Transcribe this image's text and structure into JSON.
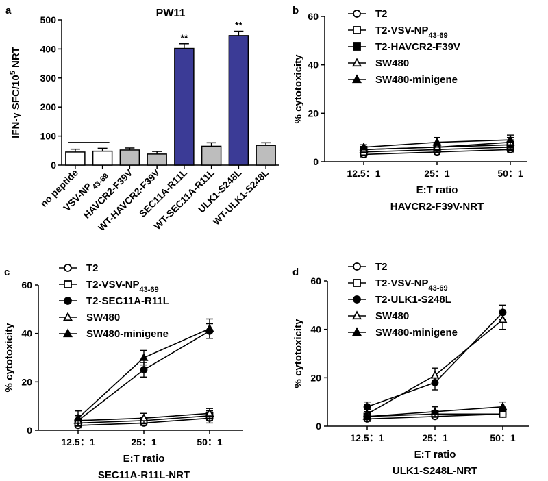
{
  "chart_data": [
    {
      "type": "bar",
      "panel": "a",
      "title": "PW11",
      "ylabel_prefix": "IFN-γ  SFC/10",
      "ylabel_sup": "5",
      "ylabel_suffix": " NRT",
      "ylim": [
        0,
        500
      ],
      "yticks": [
        0,
        100,
        200,
        300,
        400,
        500
      ],
      "categories": [
        "no peptide",
        "VSV-NP43-69",
        "HAVCR2-F39V",
        "WT-HAVCR2-F39V",
        "SEC11A-R11L",
        "WT-SEC11A-R11L",
        "ULK1-S248L",
        "WT-ULK1-S248L"
      ],
      "category_base": [
        "no peptide",
        "VSV-NP",
        "HAVCR2-F39V",
        "WT-HAVCR2-F39V",
        "SEC11A-R11L",
        "WT-SEC11A-R11L",
        "ULK1-S248L",
        "WT-ULK1-S248L"
      ],
      "category_sub": [
        "",
        "43-69",
        "",
        "",
        "",
        "",
        "",
        ""
      ],
      "values": [
        45,
        48,
        52,
        38,
        402,
        65,
        446,
        68
      ],
      "errors": [
        10,
        10,
        7,
        9,
        16,
        12,
        15,
        9
      ],
      "colors": [
        "#ffffff",
        "#ffffff",
        "#bdbdbd",
        "#bdbdbd",
        "#3b3b96",
        "#bdbdbd",
        "#3b3b96",
        "#bdbdbd"
      ],
      "annotations": [
        {
          "index": 4,
          "text": "**"
        },
        {
          "index": 6,
          "text": "**"
        }
      ],
      "bracket": {
        "from": 0,
        "to": 1,
        "value": 78
      }
    },
    {
      "type": "line",
      "panel": "b",
      "title": "HAVCR2-F39V-NRT",
      "xlabel": "E:T ratio",
      "ylabel": "% cytotoxicity",
      "categories": [
        "12.5：1",
        "25：1",
        "50：1"
      ],
      "ylim": [
        0,
        60
      ],
      "yticks": [
        0,
        20,
        40,
        60
      ],
      "series": [
        {
          "name": "T2",
          "name_sub": "",
          "marker": "circle-open",
          "values": [
            3,
            4,
            5
          ],
          "errors": [
            1,
            1,
            1
          ]
        },
        {
          "name": "T2-VSV-NP",
          "name_sub": "43-69",
          "marker": "square-open",
          "values": [
            4,
            5,
            6
          ],
          "errors": [
            1,
            1,
            1
          ]
        },
        {
          "name": "T2-HAVCR2-F39V",
          "name_sub": "",
          "marker": "square-filled",
          "values": [
            5,
            6,
            7
          ],
          "errors": [
            1,
            1,
            2
          ]
        },
        {
          "name": "SW480",
          "name_sub": "",
          "marker": "triangle-open",
          "values": [
            5,
            6,
            8
          ],
          "errors": [
            1,
            2,
            2
          ]
        },
        {
          "name": "SW480-minigene",
          "name_sub": "",
          "marker": "triangle-filled",
          "values": [
            6,
            8,
            9
          ],
          "errors": [
            1,
            2,
            2
          ]
        }
      ]
    },
    {
      "type": "line",
      "panel": "c",
      "title": "SEC11A-R11L-NRT",
      "xlabel": "E:T ratio",
      "ylabel": "% cytotoxicity",
      "categories": [
        "12.5：1",
        "25：1",
        "50：1"
      ],
      "ylim": [
        0,
        60
      ],
      "yticks": [
        0,
        20,
        40,
        60
      ],
      "series": [
        {
          "name": "T2",
          "name_sub": "",
          "marker": "circle-open",
          "values": [
            2,
            3,
            5
          ],
          "errors": [
            1,
            1,
            2
          ]
        },
        {
          "name": "T2-VSV-NP",
          "name_sub": "43-69",
          "marker": "square-open",
          "values": [
            3,
            4,
            6
          ],
          "errors": [
            1,
            1,
            2
          ]
        },
        {
          "name": "T2-SEC11A-R11L",
          "name_sub": "",
          "marker": "circle-filled",
          "values": [
            4,
            25,
            41
          ],
          "errors": [
            2,
            3,
            3
          ]
        },
        {
          "name": "SW480",
          "name_sub": "",
          "marker": "triangle-open",
          "values": [
            4,
            5,
            7
          ],
          "errors": [
            2,
            2,
            2
          ]
        },
        {
          "name": "SW480-minigene",
          "name_sub": "",
          "marker": "triangle-filled",
          "values": [
            5,
            30,
            42
          ],
          "errors": [
            3,
            3,
            4
          ]
        }
      ]
    },
    {
      "type": "line",
      "panel": "d",
      "title": "ULK1-S248L-NRT",
      "xlabel": "E:T ratio",
      "ylabel": "% cytotoxicity",
      "categories": [
        "12.5：1",
        "25：1",
        "50：1"
      ],
      "ylim": [
        0,
        60
      ],
      "yticks": [
        0,
        20,
        40,
        60
      ],
      "series": [
        {
          "name": "T2",
          "name_sub": "",
          "marker": "circle-open",
          "values": [
            3,
            4,
            5
          ],
          "errors": [
            1,
            1,
            1
          ]
        },
        {
          "name": "T2-VSV-NP",
          "name_sub": "43-69",
          "marker": "square-open",
          "values": [
            4,
            5,
            5
          ],
          "errors": [
            1,
            1,
            1
          ]
        },
        {
          "name": "T2-ULK1-S248L",
          "name_sub": "",
          "marker": "circle-filled",
          "values": [
            8,
            18,
            47
          ],
          "errors": [
            2,
            3,
            3
          ]
        },
        {
          "name": "SW480",
          "name_sub": "",
          "marker": "triangle-open",
          "values": [
            5,
            21,
            44
          ],
          "errors": [
            2,
            3,
            4
          ]
        },
        {
          "name": "SW480-minigene",
          "name_sub": "",
          "marker": "triangle-filled",
          "values": [
            4,
            6,
            8
          ],
          "errors": [
            2,
            2,
            2
          ]
        }
      ]
    }
  ]
}
